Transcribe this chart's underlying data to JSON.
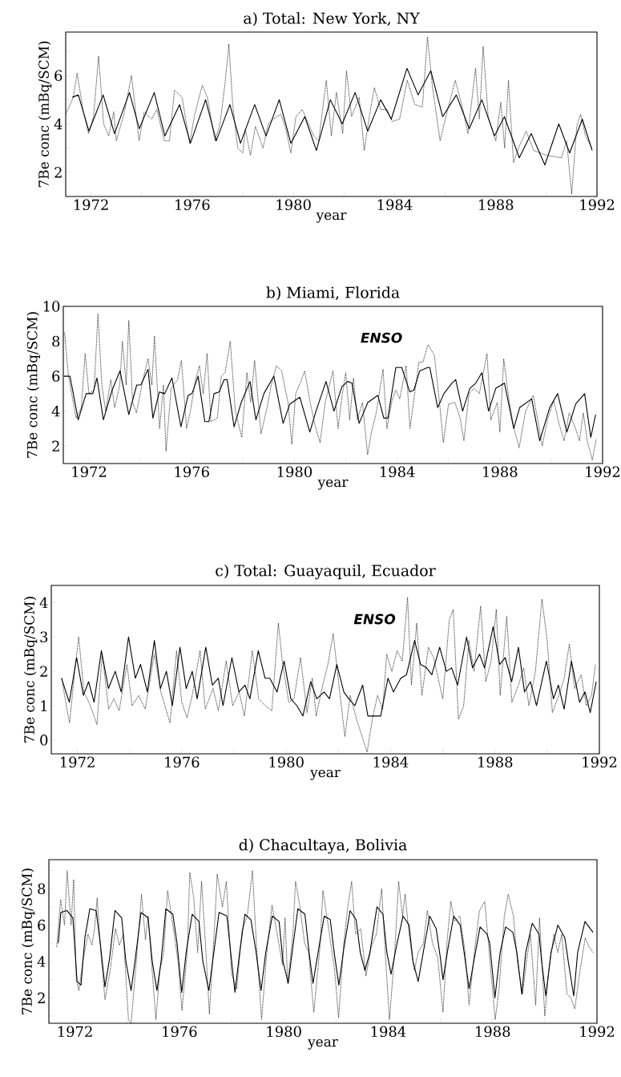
{
  "chart_data": [
    {
      "type": "line",
      "title": "a) Total: New York, NY",
      "xlabel": "year",
      "ylabel": "7Be conc (mBq/SCM)",
      "xlim": [
        1971,
        1992
      ],
      "ylim": [
        1,
        7.8
      ],
      "xticks": [
        1972,
        {
          "value": 1974,
          "label": null
        },
        1976,
        {
          "value": 1978,
          "label": null
        },
        1980,
        {
          "value": 1982,
          "label": null
        },
        1984,
        {
          "value": 1986,
          "label": null
        },
        1988,
        {
          "value": 1990,
          "label": null
        },
        1992
      ],
      "yticks": [
        2,
        {
          "value": 3,
          "label": null
        },
        4,
        {
          "value": 5,
          "label": null
        },
        6,
        {
          "value": 7,
          "label": null
        }
      ],
      "series": [
        {
          "color": "#000000",
          "line_style": "solid",
          "x": [
            1971.26,
            1971.5,
            1971.92,
            1972.48,
            1972.93,
            1973.52,
            1973.91,
            1974.5,
            1974.92,
            1975.5,
            1975.93,
            1976.53,
            1976.95,
            1977.49,
            1977.91,
            1978.47,
            1978.92,
            1979.44,
            1979.9,
            1980.45,
            1980.91,
            1981.46,
            1981.93,
            1982.44,
            1982.94,
            1983.45,
            1983.87,
            1984.49,
            1984.93,
            1985.43,
            1985.9,
            1986.44,
            1986.95,
            1987.45,
            1987.95,
            1988.34,
            1988.93,
            1989.4,
            1989.94,
            1990.49,
            1990.92,
            1991.42,
            1991.81
          ],
          "values": [
            5.1,
            5.2,
            3.7,
            5.2,
            3.6,
            5.3,
            3.8,
            5.3,
            3.5,
            4.8,
            3.2,
            5.0,
            3.3,
            4.8,
            3.2,
            4.8,
            3.5,
            5.0,
            3.2,
            4.3,
            2.9,
            5.0,
            4.0,
            5.3,
            3.7,
            5.0,
            4.2,
            6.3,
            5.2,
            6.2,
            4.3,
            5.2,
            3.8,
            5.0,
            3.5,
            4.3,
            2.6,
            3.6,
            2.3,
            4.0,
            2.8,
            4.2,
            2.9
          ]
        },
        {
          "color": "#000000",
          "line_style": "dotted",
          "x": [
            1971.0,
            1971.3,
            1971.45,
            1971.7,
            1971.9,
            1972.1,
            1972.3,
            1972.5,
            1972.7,
            1972.9,
            1973.0,
            1973.3,
            1973.6,
            1973.8,
            1973.9,
            1974.1,
            1974.4,
            1974.6,
            1974.9,
            1975.1,
            1975.3,
            1975.6,
            1975.9,
            1976.1,
            1976.4,
            1976.6,
            1976.9,
            1977.1,
            1977.3,
            1977.45,
            1977.6,
            1977.8,
            1978.0,
            1978.1,
            1978.3,
            1978.5,
            1978.8,
            1979.0,
            1979.2,
            1979.5,
            1979.7,
            1979.9,
            1980.1,
            1980.35,
            1980.6,
            1980.8,
            1981.0,
            1981.3,
            1981.5,
            1981.7,
            1981.95,
            1982.1,
            1982.3,
            1982.6,
            1982.8,
            1983.0,
            1983.2,
            1983.45,
            1983.7,
            1983.9,
            1984.2,
            1984.5,
            1984.8,
            1985.1,
            1985.3,
            1985.5,
            1985.8,
            1986.1,
            1986.4,
            1986.7,
            1986.9,
            1987.2,
            1987.35,
            1987.5,
            1987.7,
            1988.0,
            1988.2,
            1988.35,
            1988.5,
            1988.7,
            1988.9,
            1989.2,
            1989.5,
            1990.0,
            1990.6,
            1990.8,
            1991.0,
            1991.2,
            1991.35,
            1991.55,
            1991.8
          ],
          "values": [
            4.4,
            5.1,
            6.1,
            4.5,
            3.6,
            4.3,
            6.8,
            4.0,
            3.5,
            4.5,
            3.3,
            4.4,
            6.0,
            4.2,
            3.3,
            4.5,
            4.2,
            4.6,
            3.3,
            3.3,
            5.4,
            5.1,
            3.2,
            4.4,
            5.6,
            5.1,
            3.3,
            4.0,
            5.7,
            7.3,
            4.8,
            3.0,
            2.8,
            3.8,
            2.7,
            3.9,
            3.0,
            4.0,
            4.2,
            4.4,
            3.8,
            2.8,
            4.3,
            4.6,
            4.0,
            3.5,
            3.3,
            5.8,
            3.5,
            5.3,
            3.6,
            6.2,
            4.3,
            5.1,
            2.9,
            4.3,
            5.5,
            4.6,
            4.6,
            4.1,
            4.2,
            5.8,
            4.8,
            4.7,
            7.6,
            5.5,
            3.3,
            4.6,
            5.8,
            4.6,
            3.6,
            6.3,
            4.2,
            7.2,
            4.3,
            3.3,
            4.9,
            3.0,
            5.8,
            2.4,
            3.0,
            3.7,
            2.9,
            2.7,
            2.6,
            3.3,
            1.1,
            3.9,
            4.4,
            3.5,
            3.0
          ]
        }
      ]
    },
    {
      "type": "line",
      "title": "b) Miami, Florida",
      "xlabel": "year",
      "ylabel": "7Be conc (mBq/SCM)",
      "xlim": [
        1971,
        1992
      ],
      "ylim": [
        1,
        10
      ],
      "xticks": [
        1972,
        {
          "value": 1974,
          "label": null
        },
        1976,
        {
          "value": 1978,
          "label": null
        },
        1980,
        {
          "value": 1982,
          "label": null
        },
        1984,
        {
          "value": 1986,
          "label": null
        },
        1988,
        {
          "value": 1990,
          "label": null
        },
        1992
      ],
      "yticks": [
        2,
        4,
        6,
        8,
        10
      ],
      "annotations": [
        "ENSO"
      ],
      "series": [
        {
          "color": "#000000",
          "line_style": "solid",
          "x": [
            1971.03,
            1971.26,
            1971.58,
            1971.89,
            1972.15,
            1972.31,
            1972.56,
            1972.9,
            1973.21,
            1973.55,
            1973.86,
            1974.02,
            1974.3,
            1974.49,
            1974.74,
            1974.95,
            1975.23,
            1975.58,
            1975.86,
            1976.01,
            1976.25,
            1976.51,
            1976.67,
            1976.87,
            1977.07,
            1977.26,
            1977.38,
            1977.65,
            1977.93,
            1978.27,
            1978.5,
            1978.81,
            1979.2,
            1979.56,
            1979.82,
            1980.21,
            1980.6,
            1980.84,
            1981.23,
            1981.54,
            1981.85,
            1982.08,
            1982.24,
            1982.52,
            1982.86,
            1983.25,
            1983.48,
            1983.64,
            1983.95,
            1984.18,
            1984.49,
            1984.65,
            1984.88,
            1985.19,
            1985.27,
            1985.58,
            1985.82,
            1986.13,
            1986.28,
            1986.55,
            1986.83,
            1987.06,
            1987.3,
            1987.56,
            1987.84,
            1988.18,
            1988.54,
            1988.77,
            1989.24,
            1989.55,
            1989.94,
            1990.25,
            1990.61,
            1990.95,
            1991.3,
            1991.54,
            1991.73
          ],
          "values": [
            6.0,
            6.0,
            3.5,
            5.0,
            5.0,
            5.9,
            3.5,
            5.2,
            6.3,
            3.8,
            5.5,
            5.5,
            6.4,
            3.6,
            5.1,
            5.0,
            5.9,
            3.1,
            4.9,
            5.0,
            6.0,
            3.4,
            3.4,
            5.0,
            5.1,
            5.8,
            5.8,
            3.1,
            4.5,
            5.7,
            3.5,
            5.0,
            6.0,
            3.3,
            4.4,
            4.8,
            2.8,
            4.0,
            5.7,
            4.0,
            5.4,
            5.7,
            5.6,
            3.3,
            4.5,
            4.9,
            3.6,
            3.6,
            6.5,
            6.5,
            5.1,
            5.2,
            6.3,
            6.5,
            6.5,
            4.2,
            5.0,
            5.6,
            5.8,
            4.0,
            5.3,
            5.6,
            6.2,
            4.0,
            5.3,
            5.6,
            3.0,
            4.2,
            4.7,
            2.3,
            4.2,
            5.0,
            2.8,
            4.4,
            5.0,
            2.5,
            3.8
          ]
        },
        {
          "color": "#000000",
          "line_style": "dotted",
          "x": [
            1971.05,
            1971.2,
            1971.5,
            1971.7,
            1971.85,
            1972.0,
            1972.2,
            1972.35,
            1972.5,
            1972.65,
            1972.85,
            1973.0,
            1973.2,
            1973.3,
            1973.45,
            1973.55,
            1973.7,
            1973.85,
            1974.1,
            1974.3,
            1974.45,
            1974.55,
            1974.75,
            1974.9,
            1975.0,
            1975.2,
            1975.45,
            1975.6,
            1975.8,
            1975.95,
            1976.15,
            1976.3,
            1976.45,
            1976.6,
            1976.75,
            1977.0,
            1977.15,
            1977.3,
            1977.5,
            1977.7,
            1977.95,
            1978.15,
            1978.3,
            1978.45,
            1978.7,
            1978.95,
            1979.1,
            1979.3,
            1979.5,
            1979.75,
            1979.9,
            1980.05,
            1980.25,
            1980.4,
            1980.6,
            1980.8,
            1981.0,
            1981.2,
            1981.5,
            1981.7,
            1981.85,
            1982.0,
            1982.15,
            1982.3,
            1982.45,
            1982.65,
            1982.85,
            1983.0,
            1983.2,
            1983.45,
            1983.6,
            1983.8,
            1983.95,
            1984.1,
            1984.35,
            1984.5,
            1984.7,
            1984.85,
            1985.0,
            1985.2,
            1985.45,
            1985.65,
            1985.8,
            1986.0,
            1986.25,
            1986.45,
            1986.6,
            1986.8,
            1987.0,
            1987.2,
            1987.5,
            1987.65,
            1987.9,
            1988.0,
            1988.15,
            1988.35,
            1988.55,
            1988.75,
            1989.0,
            1989.3,
            1989.5,
            1989.65,
            1989.85,
            1990.1,
            1990.3,
            1990.5,
            1990.7,
            1990.95,
            1991.1,
            1991.25,
            1991.4,
            1991.6,
            1991.75
          ],
          "values": [
            8.5,
            6.0,
            3.6,
            4.2,
            7.3,
            5.0,
            5.2,
            9.6,
            5.5,
            4.0,
            5.8,
            4.2,
            5.5,
            8.0,
            5.5,
            9.2,
            4.5,
            3.9,
            5.8,
            7.0,
            5.5,
            8.3,
            3.0,
            5.5,
            1.7,
            5.3,
            5.8,
            6.9,
            3.0,
            4.0,
            5.8,
            6.6,
            5.0,
            7.3,
            3.4,
            3.6,
            6.0,
            6.2,
            8.0,
            4.0,
            2.5,
            6.2,
            4.5,
            6.9,
            2.7,
            4.3,
            5.5,
            6.6,
            6.3,
            4.5,
            2.1,
            5.0,
            5.7,
            6.3,
            4.6,
            3.2,
            2.2,
            4.5,
            6.3,
            3.0,
            4.8,
            6.2,
            3.5,
            5.9,
            3.5,
            4.5,
            1.5,
            2.8,
            4.0,
            6.4,
            3.0,
            4.6,
            5.2,
            4.7,
            6.6,
            3.0,
            5.2,
            6.8,
            6.8,
            7.8,
            7.2,
            4.5,
            2.2,
            4.4,
            4.5,
            3.6,
            2.3,
            5.0,
            5.3,
            5.0,
            7.3,
            3.5,
            4.5,
            2.8,
            7.0,
            4.7,
            3.0,
            1.9,
            4.0,
            4.9,
            3.3,
            2.0,
            3.5,
            4.6,
            3.3,
            2.3,
            3.9,
            3.0,
            2.3,
            3.9,
            2.3,
            1.2,
            2.4
          ]
        }
      ]
    },
    {
      "type": "line",
      "title": "c) Total: Guayaquil, Ecuador",
      "xlabel": "year",
      "ylabel": "7Be conc (mBq/SCM)",
      "xlim": [
        1971,
        1992
      ],
      "ylim": [
        -0.4,
        4.5
      ],
      "xticks": [
        1972,
        {
          "value": 1974,
          "label": null
        },
        1976,
        {
          "value": 1978,
          "label": null
        },
        1980,
        {
          "value": 1982,
          "label": null
        },
        1984,
        {
          "value": 1986,
          "label": null
        },
        1988,
        {
          "value": 1990,
          "label": null
        },
        1992
      ],
      "yticks": [
        0,
        1,
        2,
        3,
        4
      ],
      "annotations": [
        "ENSO"
      ],
      "series": [
        {
          "color": "#000000",
          "line_style": "solid",
          "x": [
            1971.39,
            1971.69,
            1971.97,
            1972.23,
            1972.43,
            1972.64,
            1972.92,
            1973.19,
            1973.45,
            1973.68,
            1973.96,
            1974.22,
            1974.42,
            1974.68,
            1974.95,
            1975.18,
            1975.41,
            1975.64,
            1975.93,
            1976.17,
            1976.4,
            1976.59,
            1976.92,
            1977.17,
            1977.4,
            1977.58,
            1977.92,
            1978.19,
            1978.42,
            1978.61,
            1978.93,
            1979.19,
            1979.37,
            1979.65,
            1979.92,
            1980.18,
            1980.41,
            1980.64,
            1980.94,
            1981.17,
            1981.45,
            1981.66,
            1981.94,
            1982.21,
            1982.4,
            1982.63,
            1982.93,
            1983.13,
            1983.39,
            1983.62,
            1983.9,
            1984.11,
            1984.39,
            1984.61,
            1984.92,
            1985.15,
            1985.38,
            1985.58,
            1985.88,
            1986.14,
            1986.34,
            1986.57,
            1986.91,
            1987.14,
            1987.41,
            1987.6,
            1987.93,
            1988.18,
            1988.39,
            1988.64,
            1988.9,
            1989.13,
            1989.36,
            1989.59,
            1989.97,
            1990.24,
            1990.43,
            1990.65,
            1990.93,
            1991.24,
            1991.45,
            1991.65,
            1991.88
          ],
          "values": [
            1.8,
            1.1,
            2.4,
            1.3,
            1.7,
            1.1,
            2.6,
            1.5,
            2.0,
            1.4,
            3.0,
            1.8,
            2.2,
            1.4,
            2.9,
            1.5,
            2.0,
            1.0,
            2.7,
            1.5,
            2.0,
            1.2,
            2.7,
            1.6,
            1.8,
            1.0,
            2.4,
            1.4,
            1.6,
            1.2,
            2.6,
            1.8,
            1.8,
            1.4,
            2.3,
            1.2,
            1.0,
            0.7,
            1.7,
            1.2,
            1.4,
            1.2,
            2.2,
            1.4,
            1.2,
            1.0,
            1.6,
            0.7,
            0.7,
            0.7,
            1.8,
            1.4,
            1.8,
            1.9,
            2.9,
            2.2,
            2.1,
            1.9,
            2.7,
            2.0,
            2.1,
            1.6,
            3.0,
            2.1,
            2.5,
            2.1,
            3.3,
            2.2,
            2.4,
            1.7,
            2.7,
            1.4,
            1.7,
            1.0,
            2.3,
            1.2,
            1.6,
            0.9,
            2.3,
            1.1,
            1.4,
            0.8,
            1.7
          ]
        },
        {
          "color": "#000000",
          "line_style": "dotted",
          "x": [
            1971.4,
            1971.6,
            1971.7,
            1971.9,
            1972.05,
            1972.25,
            1972.5,
            1972.75,
            1972.95,
            1973.2,
            1973.4,
            1973.6,
            1973.9,
            1974.1,
            1974.35,
            1974.6,
            1974.95,
            1975.2,
            1975.45,
            1975.55,
            1975.8,
            1976.0,
            1976.2,
            1976.4,
            1976.7,
            1976.9,
            1977.2,
            1977.4,
            1977.7,
            1977.95,
            1978.2,
            1978.4,
            1978.7,
            1978.95,
            1979.2,
            1979.45,
            1979.7,
            1979.85,
            1980.1,
            1980.3,
            1980.55,
            1980.8,
            1981.0,
            1981.15,
            1981.4,
            1981.6,
            1981.8,
            1982.05,
            1982.25,
            1982.45,
            1982.7,
            1982.95,
            1983.1,
            1983.3,
            1983.5,
            1983.7,
            1983.85,
            1984.05,
            1984.25,
            1984.45,
            1984.65,
            1984.8,
            1985.0,
            1985.2,
            1985.45,
            1985.65,
            1985.85,
            1986.0,
            1986.25,
            1986.4,
            1986.6,
            1986.8,
            1987.0,
            1987.2,
            1987.45,
            1987.65,
            1987.85,
            1988.05,
            1988.2,
            1988.45,
            1988.65,
            1988.9,
            1989.1,
            1989.3,
            1989.55,
            1989.8,
            1990.0,
            1990.2,
            1990.45,
            1990.65,
            1990.85,
            1991.05,
            1991.3,
            1991.5,
            1991.7,
            1991.85
          ],
          "values": [
            1.8,
            0.9,
            0.5,
            2.0,
            3.0,
            1.4,
            1.0,
            0.45,
            2.5,
            0.9,
            1.2,
            0.85,
            2.2,
            1.0,
            1.3,
            0.9,
            2.5,
            1.4,
            0.75,
            0.5,
            2.6,
            1.1,
            0.65,
            1.3,
            2.6,
            0.9,
            1.5,
            0.85,
            2.3,
            1.0,
            1.4,
            0.7,
            2.6,
            1.2,
            1.0,
            0.85,
            3.4,
            2.3,
            1.1,
            1.2,
            2.4,
            0.8,
            1.8,
            0.7,
            1.6,
            2.2,
            3.1,
            1.4,
            0.1,
            1.3,
            0.6,
            0.0,
            -0.35,
            0.6,
            1.3,
            0.9,
            2.5,
            2.0,
            2.6,
            2.3,
            4.15,
            1.6,
            3.4,
            1.3,
            2.7,
            2.4,
            1.7,
            1.2,
            3.5,
            3.8,
            0.6,
            1.0,
            2.9,
            2.0,
            3.9,
            1.7,
            2.3,
            3.8,
            1.3,
            3.6,
            1.1,
            1.6,
            2.1,
            1.0,
            2.0,
            4.1,
            2.9,
            0.8,
            1.3,
            1.8,
            2.8,
            1.5,
            1.9,
            1.0,
            1.3,
            2.2
          ]
        }
      ]
    },
    {
      "type": "line",
      "title": "d) Chacultaya, Bolivia",
      "xlabel": "year",
      "ylabel": "7Be conc (mBq/SCM)",
      "xlim": [
        1971,
        1992
      ],
      "ylim": [
        0.6,
        9.6
      ],
      "xticks": [
        1972,
        {
          "value": 1974,
          "label": null
        },
        1976,
        {
          "value": 1978,
          "label": null
        },
        1980,
        {
          "value": 1982,
          "label": null
        },
        1984,
        {
          "value": 1986,
          "label": null
        },
        1988,
        {
          "value": 1990,
          "label": null
        },
        1992
      ],
      "yticks": [
        {
          "value": 1,
          "label": null
        },
        2,
        {
          "value": 3,
          "label": null
        },
        4,
        {
          "value": 5,
          "label": null
        },
        6,
        {
          "value": 7,
          "label": null
        },
        8,
        {
          "value": 9,
          "label": null
        }
      ],
      "series": [
        {
          "color": "#000000",
          "line_style": "solid",
          "x": [
            1971.36,
            1971.46,
            1971.69,
            1971.92,
            1972.08,
            1972.23,
            1972.38,
            1972.57,
            1972.81,
            1972.97,
            1973.15,
            1973.33,
            1973.53,
            1973.79,
            1973.95,
            1974.15,
            1974.3,
            1974.53,
            1974.8,
            1974.96,
            1975.14,
            1975.3,
            1975.48,
            1975.75,
            1975.91,
            1976.09,
            1976.26,
            1976.49,
            1976.75,
            1976.9,
            1977.13,
            1977.32,
            1977.52,
            1977.82,
            1977.93,
            1978.13,
            1978.31,
            1978.51,
            1978.74,
            1978.94,
            1979.13,
            1979.31,
            1979.56,
            1979.82,
            1979.97,
            1980.17,
            1980.32,
            1980.54,
            1980.81,
            1980.97,
            1981.12,
            1981.35,
            1981.55,
            1981.78,
            1981.93,
            1982.11,
            1982.31,
            1982.54,
            1982.77,
            1982.93,
            1983.11,
            1983.3,
            1983.57,
            1983.8,
            1983.95,
            1984.11,
            1984.34,
            1984.57,
            1984.8,
            1984.95,
            1985.15,
            1985.38,
            1985.59,
            1985.84,
            1985.99,
            1986.1,
            1986.3,
            1986.51,
            1986.76,
            1986.91,
            1987.1,
            1987.28,
            1987.52,
            1987.79,
            1987.89,
            1988.09,
            1988.29,
            1988.5,
            1988.78,
            1988.93,
            1989.12,
            1989.27,
            1989.52,
            1989.78,
            1989.88,
            1990.04,
            1990.24,
            1990.5,
            1990.77,
            1990.9,
            1991.11,
            1991.26,
            1991.54,
            1991.85
          ],
          "values": [
            5.0,
            6.7,
            6.8,
            6.4,
            2.9,
            2.7,
            5.3,
            6.9,
            6.8,
            5.0,
            2.6,
            4.2,
            6.8,
            6.4,
            4.0,
            2.4,
            4.0,
            6.7,
            6.4,
            4.0,
            2.4,
            4.0,
            6.9,
            6.6,
            5.0,
            2.3,
            4.5,
            6.6,
            6.2,
            4.0,
            2.4,
            4.5,
            6.7,
            6.5,
            5.0,
            2.3,
            4.5,
            6.6,
            6.3,
            4.5,
            2.4,
            4.5,
            6.5,
            6.2,
            4.0,
            2.8,
            4.5,
            6.9,
            6.6,
            4.5,
            2.8,
            4.8,
            6.5,
            6.3,
            4.5,
            2.7,
            4.8,
            6.8,
            6.3,
            4.5,
            3.5,
            4.5,
            7.0,
            6.6,
            4.5,
            3.3,
            5.0,
            6.5,
            6.0,
            4.0,
            2.9,
            4.8,
            6.5,
            5.8,
            4.3,
            3.0,
            4.8,
            6.5,
            6.0,
            4.5,
            2.5,
            4.0,
            5.9,
            5.5,
            5.0,
            2.0,
            4.5,
            5.9,
            5.6,
            4.5,
            2.2,
            4.5,
            6.1,
            5.5,
            4.0,
            2.1,
            4.5,
            6.0,
            5.3,
            4.0,
            2.1,
            4.5,
            6.2,
            5.6
          ]
        },
        {
          "color": "#000000",
          "line_style": "dotted",
          "x": [
            1971.3,
            1971.45,
            1971.6,
            1971.7,
            1971.85,
            1971.95,
            1972.05,
            1972.15,
            1972.3,
            1972.5,
            1972.65,
            1972.75,
            1972.85,
            1973.0,
            1973.15,
            1973.35,
            1973.55,
            1973.7,
            1973.85,
            1974.05,
            1974.15,
            1974.35,
            1974.55,
            1974.7,
            1974.8,
            1975.1,
            1975.25,
            1975.4,
            1975.55,
            1975.75,
            1975.95,
            1976.1,
            1976.3,
            1976.4,
            1976.55,
            1976.7,
            1976.85,
            1977.0,
            1977.15,
            1977.35,
            1977.45,
            1977.65,
            1977.8,
            1978.0,
            1978.2,
            1978.4,
            1978.6,
            1978.8,
            1978.95,
            1979.15,
            1979.35,
            1979.55,
            1979.75,
            1979.95,
            1980.05,
            1980.15,
            1980.35,
            1980.45,
            1980.6,
            1980.8,
            1980.95,
            1981.15,
            1981.4,
            1981.5,
            1981.7,
            1981.95,
            1982.1,
            1982.3,
            1982.45,
            1982.6,
            1982.75,
            1982.95,
            1983.15,
            1983.35,
            1983.55,
            1983.75,
            1983.9,
            1984.05,
            1984.25,
            1984.4,
            1984.55,
            1984.65,
            1984.8,
            1985.0,
            1985.15,
            1985.35,
            1985.5,
            1985.7,
            1985.9,
            1986.1,
            1986.25,
            1986.4,
            1986.55,
            1986.75,
            1986.95,
            1987.1,
            1987.3,
            1987.5,
            1987.7,
            1987.9,
            1988.1,
            1988.25,
            1988.45,
            1988.6,
            1988.8,
            1988.95,
            1989.15,
            1989.3,
            1989.45,
            1989.65,
            1989.8,
            1990.0,
            1990.15,
            1990.35,
            1990.5,
            1990.65,
            1990.85,
            1991.0,
            1991.15,
            1991.35,
            1991.55,
            1991.7,
            1991.85
          ],
          "values": [
            4.8,
            7.4,
            6.0,
            9.0,
            6.0,
            8.5,
            3.0,
            2.4,
            4.0,
            5.5,
            4.9,
            5.8,
            7.5,
            4.3,
            1.9,
            3.5,
            5.8,
            4.9,
            5.5,
            0.8,
            0.6,
            4.0,
            7.7,
            5.2,
            6.5,
            0.8,
            3.5,
            4.5,
            7.9,
            6.0,
            4.0,
            1.3,
            4.5,
            8.9,
            7.5,
            4.5,
            8.4,
            5.0,
            1.1,
            6.0,
            8.8,
            7.0,
            8.4,
            3.3,
            2.5,
            5.7,
            6.5,
            9.0,
            5.0,
            0.8,
            4.5,
            7.1,
            5.5,
            3.8,
            6.4,
            2.8,
            5.5,
            8.4,
            7.2,
            5.0,
            4.5,
            1.2,
            5.0,
            7.9,
            6.0,
            3.5,
            0.9,
            5.0,
            7.0,
            8.4,
            5.5,
            5.8,
            3.2,
            4.8,
            5.5,
            8.0,
            4.2,
            0.8,
            4.5,
            8.4,
            6.5,
            7.7,
            5.5,
            3.5,
            4.5,
            5.0,
            6.8,
            5.0,
            4.2,
            1.2,
            5.0,
            7.3,
            6.2,
            6.5,
            4.5,
            1.6,
            4.5,
            6.8,
            7.3,
            4.0,
            0.8,
            2.5,
            6.5,
            7.7,
            6.5,
            4.0,
            2.2,
            4.0,
            5.5,
            1.6,
            6.4,
            1.0,
            3.5,
            5.5,
            4.5,
            5.5,
            2.2,
            2.0,
            1.4,
            3.5,
            5.3,
            4.8,
            4.5
          ]
        }
      ]
    }
  ]
}
